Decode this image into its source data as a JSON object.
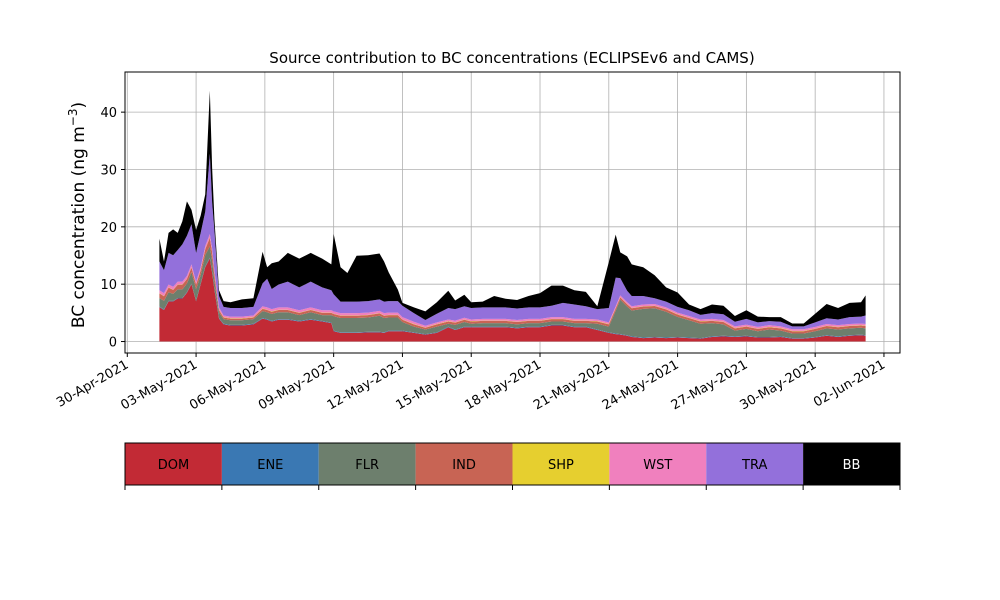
{
  "chart_data": {
    "type": "area",
    "stacked": true,
    "title": "Source contribution to BC concentrations (ECLIPSEv6 and CAMS)",
    "xlabel": "",
    "ylabel": "BC concentration (ng m",
    "ylabel_sup": "−3",
    "ylabel_close": ")",
    "ylim": [
      -2,
      47
    ],
    "xlim_days": [
      -0.1,
      33.7
    ],
    "x_origin": "2021-04-30",
    "yticks": [
      0,
      10,
      20,
      30,
      40
    ],
    "xticks": [
      {
        "day": 0,
        "label": "30-Apr-2021"
      },
      {
        "day": 3,
        "label": "03-May-2021"
      },
      {
        "day": 6,
        "label": "06-May-2021"
      },
      {
        "day": 9,
        "label": "09-May-2021"
      },
      {
        "day": 12,
        "label": "12-May-2021"
      },
      {
        "day": 15,
        "label": "15-May-2021"
      },
      {
        "day": 18,
        "label": "18-May-2021"
      },
      {
        "day": 21,
        "label": "21-May-2021"
      },
      {
        "day": 24,
        "label": "24-May-2021"
      },
      {
        "day": 27,
        "label": "27-May-2021"
      },
      {
        "day": 30,
        "label": "30-May-2021"
      },
      {
        "day": 33,
        "label": "02-Jun-2021"
      }
    ],
    "grid": true,
    "x_days": [
      1.4,
      1.6,
      1.8,
      2.0,
      2.2,
      2.4,
      2.6,
      2.8,
      3.0,
      3.2,
      3.4,
      3.6,
      3.7,
      3.8,
      4.0,
      4.2,
      4.5,
      5.0,
      5.5,
      5.9,
      6.1,
      6.3,
      6.6,
      7.0,
      7.5,
      8.0,
      8.5,
      8.9,
      9.0,
      9.3,
      9.6,
      10.0,
      10.5,
      11.0,
      11.2,
      11.4,
      11.8,
      12.0,
      12.5,
      13.0,
      13.5,
      14.0,
      14.3,
      14.7,
      15.0,
      15.5,
      16.0,
      16.5,
      17.0,
      17.5,
      18.0,
      18.5,
      19.0,
      19.5,
      20.0,
      20.5,
      21.0,
      21.3,
      21.5,
      21.8,
      22.0,
      22.5,
      23.0,
      23.5,
      24.0,
      24.5,
      25.0,
      25.5,
      26.0,
      26.5,
      27.0,
      27.5,
      28.0,
      28.5,
      29.0,
      29.5,
      30.0,
      30.5,
      31.0,
      31.5,
      32.0,
      32.2
    ],
    "series": [
      {
        "name": "DOM",
        "color": "#c22a35",
        "values": [
          6.0,
          5.5,
          7.0,
          7.0,
          7.5,
          7.5,
          8.5,
          10.0,
          7.0,
          10.0,
          13.0,
          14.5,
          12.0,
          9.0,
          4.0,
          3.0,
          2.8,
          2.8,
          3.0,
          4.0,
          3.8,
          3.5,
          3.8,
          3.8,
          3.5,
          3.8,
          3.5,
          3.2,
          1.8,
          1.5,
          1.5,
          1.5,
          1.6,
          1.6,
          1.5,
          1.8,
          1.8,
          1.8,
          1.5,
          1.2,
          1.5,
          2.5,
          2.0,
          2.5,
          2.5,
          2.5,
          2.5,
          2.5,
          2.3,
          2.5,
          2.5,
          2.8,
          2.8,
          2.5,
          2.5,
          2.0,
          1.5,
          1.3,
          1.2,
          1.0,
          0.8,
          0.6,
          0.7,
          0.6,
          0.7,
          0.6,
          0.5,
          0.8,
          0.9,
          0.8,
          0.9,
          0.7,
          0.7,
          0.8,
          0.5,
          0.5,
          0.7,
          1.0,
          0.8,
          1.0,
          1.1,
          1.0
        ]
      },
      {
        "name": "ENE",
        "color": "#3a78b3",
        "values": [
          0.1,
          0.1,
          0.1,
          0.1,
          0.1,
          0.1,
          0.1,
          0.1,
          0.1,
          0.1,
          0.1,
          0.1,
          0.1,
          0.1,
          0.1,
          0.1,
          0.1,
          0.1,
          0.1,
          0.1,
          0.1,
          0.1,
          0.1,
          0.1,
          0.1,
          0.1,
          0.1,
          0.1,
          0.1,
          0.1,
          0.1,
          0.1,
          0.1,
          0.1,
          0.1,
          0.1,
          0.1,
          0.1,
          0.1,
          0.1,
          0.1,
          0.1,
          0.1,
          0.1,
          0.1,
          0.1,
          0.1,
          0.1,
          0.1,
          0.1,
          0.1,
          0.1,
          0.1,
          0.1,
          0.1,
          0.1,
          0.1,
          0.1,
          0.1,
          0.1,
          0.1,
          0.1,
          0.1,
          0.1,
          0.1,
          0.1,
          0.1,
          0.1,
          0.1,
          0.1,
          0.1,
          0.1,
          0.1,
          0.1,
          0.1,
          0.1,
          0.1,
          0.1,
          0.1,
          0.1,
          0.1,
          0.1
        ]
      },
      {
        "name": "FLR",
        "color": "#6d7f6d",
        "values": [
          1.5,
          1.5,
          1.5,
          1.2,
          1.5,
          1.5,
          1.5,
          2.0,
          2.0,
          1.5,
          2.0,
          2.0,
          2.0,
          1.5,
          1.0,
          0.8,
          0.8,
          0.8,
          0.8,
          1.2,
          1.2,
          1.2,
          1.2,
          1.2,
          1.0,
          1.2,
          1.0,
          1.3,
          2.5,
          2.5,
          2.5,
          2.5,
          2.5,
          2.8,
          2.5,
          2.3,
          2.3,
          1.5,
          1.0,
          0.8,
          1.0,
          0.5,
          0.8,
          0.8,
          0.5,
          0.6,
          0.6,
          0.6,
          0.6,
          0.6,
          0.6,
          0.6,
          0.6,
          0.6,
          0.6,
          1.0,
          1.0,
          4.0,
          6.0,
          5.0,
          4.5,
          5.0,
          5.0,
          4.5,
          3.5,
          3.0,
          2.5,
          2.3,
          2.0,
          1.0,
          1.2,
          1.0,
          1.3,
          1.0,
          0.8,
          0.8,
          1.0,
          1.2,
          1.2,
          1.2,
          1.2,
          1.2
        ]
      },
      {
        "name": "IND",
        "color": "#c86454",
        "values": [
          0.8,
          0.8,
          0.8,
          0.7,
          0.8,
          0.8,
          0.8,
          0.8,
          0.8,
          0.8,
          1.0,
          1.5,
          1.5,
          1.2,
          0.4,
          0.3,
          0.3,
          0.3,
          0.3,
          0.4,
          0.4,
          0.4,
          0.4,
          0.4,
          0.4,
          0.4,
          0.4,
          0.4,
          0.4,
          0.4,
          0.4,
          0.4,
          0.4,
          0.4,
          0.4,
          0.4,
          0.4,
          0.4,
          0.4,
          0.3,
          0.4,
          0.4,
          0.4,
          0.4,
          0.4,
          0.4,
          0.4,
          0.4,
          0.4,
          0.4,
          0.4,
          0.4,
          0.4,
          0.4,
          0.4,
          0.4,
          0.4,
          0.4,
          0.4,
          0.4,
          0.4,
          0.4,
          0.4,
          0.4,
          0.4,
          0.4,
          0.4,
          0.4,
          0.4,
          0.4,
          0.4,
          0.4,
          0.4,
          0.4,
          0.4,
          0.4,
          0.4,
          0.4,
          0.4,
          0.4,
          0.4,
          0.4
        ]
      },
      {
        "name": "SHP",
        "color": "#e6cf2f",
        "values": [
          0.05,
          0.05,
          0.05,
          0.05,
          0.05,
          0.05,
          0.05,
          0.05,
          0.05,
          0.05,
          0.05,
          0.05,
          0.05,
          0.05,
          0.05,
          0.05,
          0.05,
          0.05,
          0.05,
          0.05,
          0.05,
          0.05,
          0.05,
          0.05,
          0.05,
          0.05,
          0.05,
          0.05,
          0.05,
          0.05,
          0.05,
          0.05,
          0.05,
          0.05,
          0.05,
          0.05,
          0.05,
          0.05,
          0.05,
          0.05,
          0.05,
          0.05,
          0.05,
          0.05,
          0.05,
          0.05,
          0.05,
          0.05,
          0.05,
          0.05,
          0.05,
          0.05,
          0.05,
          0.05,
          0.05,
          0.05,
          0.05,
          0.05,
          0.05,
          0.05,
          0.05,
          0.05,
          0.05,
          0.05,
          0.05,
          0.05,
          0.05,
          0.05,
          0.05,
          0.05,
          0.05,
          0.05,
          0.05,
          0.05,
          0.05,
          0.05,
          0.05,
          0.05,
          0.05,
          0.05,
          0.05,
          0.05
        ]
      },
      {
        "name": "WST",
        "color": "#f080be",
        "values": [
          0.5,
          0.5,
          0.5,
          0.5,
          0.5,
          0.5,
          0.5,
          0.5,
          0.5,
          0.5,
          0.5,
          0.6,
          0.6,
          0.5,
          0.4,
          0.3,
          0.3,
          0.3,
          0.3,
          0.4,
          0.4,
          0.4,
          0.4,
          0.4,
          0.4,
          0.4,
          0.4,
          0.4,
          0.4,
          0.4,
          0.4,
          0.4,
          0.4,
          0.4,
          0.4,
          0.4,
          0.4,
          0.4,
          0.4,
          0.3,
          0.3,
          0.3,
          0.3,
          0.3,
          0.3,
          0.3,
          0.3,
          0.3,
          0.3,
          0.3,
          0.3,
          0.3,
          0.3,
          0.3,
          0.3,
          0.3,
          0.3,
          0.3,
          0.3,
          0.3,
          0.3,
          0.3,
          0.3,
          0.3,
          0.3,
          0.3,
          0.3,
          0.3,
          0.3,
          0.3,
          0.3,
          0.3,
          0.3,
          0.3,
          0.3,
          0.3,
          0.3,
          0.3,
          0.3,
          0.3,
          0.3,
          0.3
        ]
      },
      {
        "name": "TRA",
        "color": "#9370db",
        "values": [
          5.0,
          4.0,
          5.5,
          5.5,
          5.5,
          6.5,
          7.0,
          7.0,
          5.0,
          6.0,
          6.0,
          14.0,
          8.0,
          7.0,
          2.0,
          1.5,
          1.5,
          1.5,
          1.5,
          4.0,
          5.0,
          3.5,
          4.0,
          4.5,
          4.0,
          4.5,
          4.0,
          3.5,
          3.0,
          2.0,
          2.0,
          2.0,
          2.0,
          2.0,
          2.0,
          2.0,
          2.0,
          2.0,
          1.5,
          1.0,
          1.5,
          2.0,
          2.0,
          2.0,
          2.0,
          2.0,
          2.0,
          2.0,
          2.0,
          2.0,
          2.0,
          2.0,
          2.5,
          2.5,
          2.2,
          1.8,
          2.5,
          5.0,
          3.0,
          2.0,
          1.8,
          1.5,
          1.0,
          1.0,
          1.0,
          1.0,
          0.8,
          1.0,
          1.0,
          0.8,
          1.0,
          0.8,
          0.7,
          0.8,
          0.5,
          0.5,
          0.8,
          1.0,
          1.0,
          1.2,
          1.2,
          1.5
        ]
      },
      {
        "name": "BB",
        "color": "#000000",
        "values": [
          4.0,
          1.5,
          3.5,
          4.5,
          3.0,
          4.0,
          6.0,
          2.5,
          4.0,
          3.0,
          3.0,
          11.0,
          6.0,
          2.0,
          1.0,
          1.0,
          1.0,
          1.5,
          1.5,
          5.5,
          2.0,
          4.5,
          4.0,
          5.0,
          5.0,
          5.0,
          5.0,
          4.5,
          10.5,
          6.0,
          5.0,
          8.0,
          8.0,
          8.0,
          7.0,
          5.0,
          2.0,
          0.5,
          1.0,
          1.5,
          2.0,
          3.0,
          1.5,
          2.0,
          1.0,
          1.0,
          2.0,
          1.5,
          1.5,
          2.0,
          2.5,
          3.5,
          3.0,
          2.5,
          2.5,
          0.5,
          8.0,
          7.5,
          4.5,
          6.0,
          5.5,
          5.0,
          4.0,
          2.5,
          2.5,
          1.0,
          1.0,
          1.5,
          1.5,
          1.0,
          1.5,
          1.0,
          0.7,
          0.8,
          0.5,
          0.5,
          1.5,
          2.5,
          2.0,
          2.5,
          2.5,
          3.5
        ]
      }
    ],
    "legend": {
      "placement": "bottom",
      "entries": [
        {
          "name": "DOM",
          "color": "#c22a35",
          "text_color": "#000000"
        },
        {
          "name": "ENE",
          "color": "#3a78b3",
          "text_color": "#000000"
        },
        {
          "name": "FLR",
          "color": "#6d7f6d",
          "text_color": "#000000"
        },
        {
          "name": "IND",
          "color": "#c86454",
          "text_color": "#000000"
        },
        {
          "name": "SHP",
          "color": "#e6cf2f",
          "text_color": "#000000"
        },
        {
          "name": "WST",
          "color": "#f080be",
          "text_color": "#000000"
        },
        {
          "name": "TRA",
          "color": "#9370db",
          "text_color": "#000000"
        },
        {
          "name": "BB",
          "color": "#000000",
          "text_color": "#ffffff"
        }
      ]
    }
  }
}
